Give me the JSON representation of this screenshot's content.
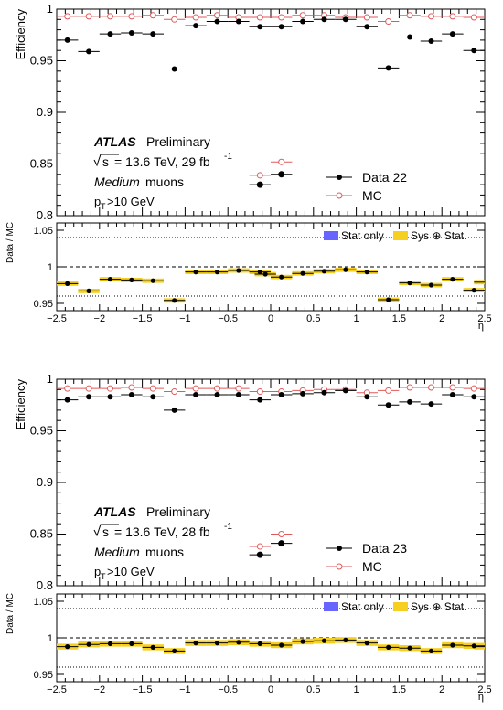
{
  "common": {
    "eta": [
      -2.375,
      -2.125,
      -1.875,
      -1.625,
      -1.375,
      -1.125,
      -0.875,
      -0.625,
      -0.375,
      -0.125,
      0.125,
      0.375,
      0.625,
      0.875,
      1.125,
      1.375,
      1.625,
      1.875,
      2.125,
      2.375
    ],
    "efficiency_label": "Efficiency",
    "ratio_label": "Data / MC",
    "xlabel": "η",
    "eff_ticks": [
      "0.8",
      "0.85",
      "0.9",
      "0.95",
      "1"
    ],
    "ratio_ticks": [
      "0.95",
      "1",
      "1.05"
    ],
    "x_ticks": [
      "−2.5",
      "−2",
      "−1.5",
      "−1",
      "−0.5",
      "0",
      "0.5",
      "1",
      "1.5",
      "2",
      "2.5"
    ],
    "atlas": "ATLAS",
    "preliminary": "Preliminary",
    "muons": "muons",
    "medium": "Medium",
    "pt_p": "p",
    "pt_sub": "T",
    "pt_rest": ">10 GeV",
    "legend_mc": "MC",
    "legend_stat": "Stat only",
    "legend_sys": "Sys ⊕ Stat.",
    "colors": {
      "data": "#000000",
      "mc": "#e05a5a",
      "stat": "#6666ff",
      "sys": "#f5d020"
    }
  },
  "chart_data": [
    {
      "type": "scatter",
      "energy_text": "= 13.6 TeV, 29 fb",
      "lumi_exp": "-1",
      "legend_data": "Data 22",
      "x": [
        -2.375,
        -2.125,
        -1.875,
        -1.625,
        -1.375,
        -1.125,
        -0.875,
        -0.625,
        -0.375,
        -0.125,
        0.125,
        0.375,
        0.625,
        0.875,
        1.125,
        1.375,
        1.625,
        1.875,
        2.125,
        2.375
      ],
      "xlim": [
        -2.5,
        2.5
      ],
      "ylim": [
        0.8,
        1.0
      ],
      "ratio_ylim": [
        0.94,
        1.06
      ],
      "series": [
        {
          "name": "Data 22",
          "values": [
            0.97,
            0.959,
            0.976,
            0.977,
            0.976,
            0.942,
            0.984,
            0.988,
            0.988,
            0.983,
            0.983,
            0.988,
            0.99,
            0.99,
            0.983,
            0.943,
            0.973,
            0.969,
            0.976,
            0.96
          ]
        },
        {
          "name": "MC",
          "values": [
            0.993,
            0.993,
            0.993,
            0.993,
            0.994,
            0.99,
            0.992,
            0.994,
            0.992,
            0.992,
            0.992,
            0.994,
            0.994,
            0.992,
            0.992,
            0.988,
            0.994,
            0.993,
            0.993,
            0.992
          ]
        }
      ],
      "extra_points": [
        {
          "series": "Data 22",
          "x": -0.125,
          "y": 0.83
        },
        {
          "series": "Data 22",
          "x": 0.125,
          "y": 0.84
        },
        {
          "series": "MC",
          "x": -0.125,
          "y": 0.839
        },
        {
          "series": "MC",
          "x": 0.125,
          "y": 0.852
        }
      ],
      "ratio": [
        0.977,
        0.967,
        0.983,
        0.982,
        0.981,
        0.954,
        0.993,
        0.993,
        0.995,
        0.993,
        0.99,
        0.986,
        0.991,
        0.994,
        0.996,
        0.993,
        0.955,
        0.978,
        0.975,
        0.983,
        0.968,
        0.979
      ],
      "ratio_x": [
        -2.375,
        -2.125,
        -1.875,
        -1.625,
        -1.375,
        -1.125,
        -0.875,
        -0.625,
        -0.375,
        -0.125,
        -0.0625,
        0.125,
        0.375,
        0.625,
        0.875,
        1.125,
        1.375,
        1.625,
        1.875,
        2.125,
        2.375,
        2.5
      ],
      "ratio_sys": 0.003
    },
    {
      "type": "scatter",
      "energy_text": "= 13.6 TeV, 28 fb",
      "lumi_exp": "-1",
      "legend_data": "Data 23",
      "x": [
        -2.375,
        -2.125,
        -1.875,
        -1.625,
        -1.375,
        -1.125,
        -0.875,
        -0.625,
        -0.375,
        -0.125,
        0.125,
        0.375,
        0.625,
        0.875,
        1.125,
        1.375,
        1.625,
        1.875,
        2.125,
        2.375
      ],
      "xlim": [
        -2.5,
        2.5
      ],
      "ylim": [
        0.8,
        1.0
      ],
      "ratio_ylim": [
        0.94,
        1.06
      ],
      "series": [
        {
          "name": "Data 23",
          "values": [
            0.98,
            0.983,
            0.983,
            0.985,
            0.983,
            0.97,
            0.985,
            0.985,
            0.985,
            0.98,
            0.985,
            0.986,
            0.987,
            0.989,
            0.983,
            0.975,
            0.978,
            0.976,
            0.985,
            0.983
          ]
        },
        {
          "name": "MC",
          "values": [
            0.991,
            0.991,
            0.991,
            0.992,
            0.991,
            0.988,
            0.991,
            0.991,
            0.991,
            0.988,
            0.988,
            0.989,
            0.99,
            0.99,
            0.987,
            0.989,
            0.992,
            0.992,
            0.992,
            0.991
          ]
        }
      ],
      "extra_points": [
        {
          "series": "Data 23",
          "x": -0.125,
          "y": 0.83
        },
        {
          "series": "Data 23",
          "x": 0.125,
          "y": 0.841
        },
        {
          "series": "MC",
          "x": -0.125,
          "y": 0.838
        },
        {
          "series": "MC",
          "x": 0.125,
          "y": 0.85
        }
      ],
      "ratio": [
        0.988,
        0.991,
        0.992,
        0.992,
        0.987,
        0.982,
        0.993,
        0.993,
        0.994,
        0.992,
        0.99,
        0.995,
        0.996,
        0.997,
        0.993,
        0.987,
        0.986,
        0.982,
        0.99,
        0.989,
        0.988
      ],
      "ratio_x": [
        -2.375,
        -2.125,
        -1.875,
        -1.625,
        -1.375,
        -1.125,
        -0.875,
        -0.625,
        -0.375,
        -0.125,
        0.125,
        0.375,
        0.625,
        0.875,
        1.125,
        1.375,
        1.625,
        1.875,
        2.125,
        2.375,
        2.5
      ],
      "ratio_sys": 0.004
    }
  ]
}
